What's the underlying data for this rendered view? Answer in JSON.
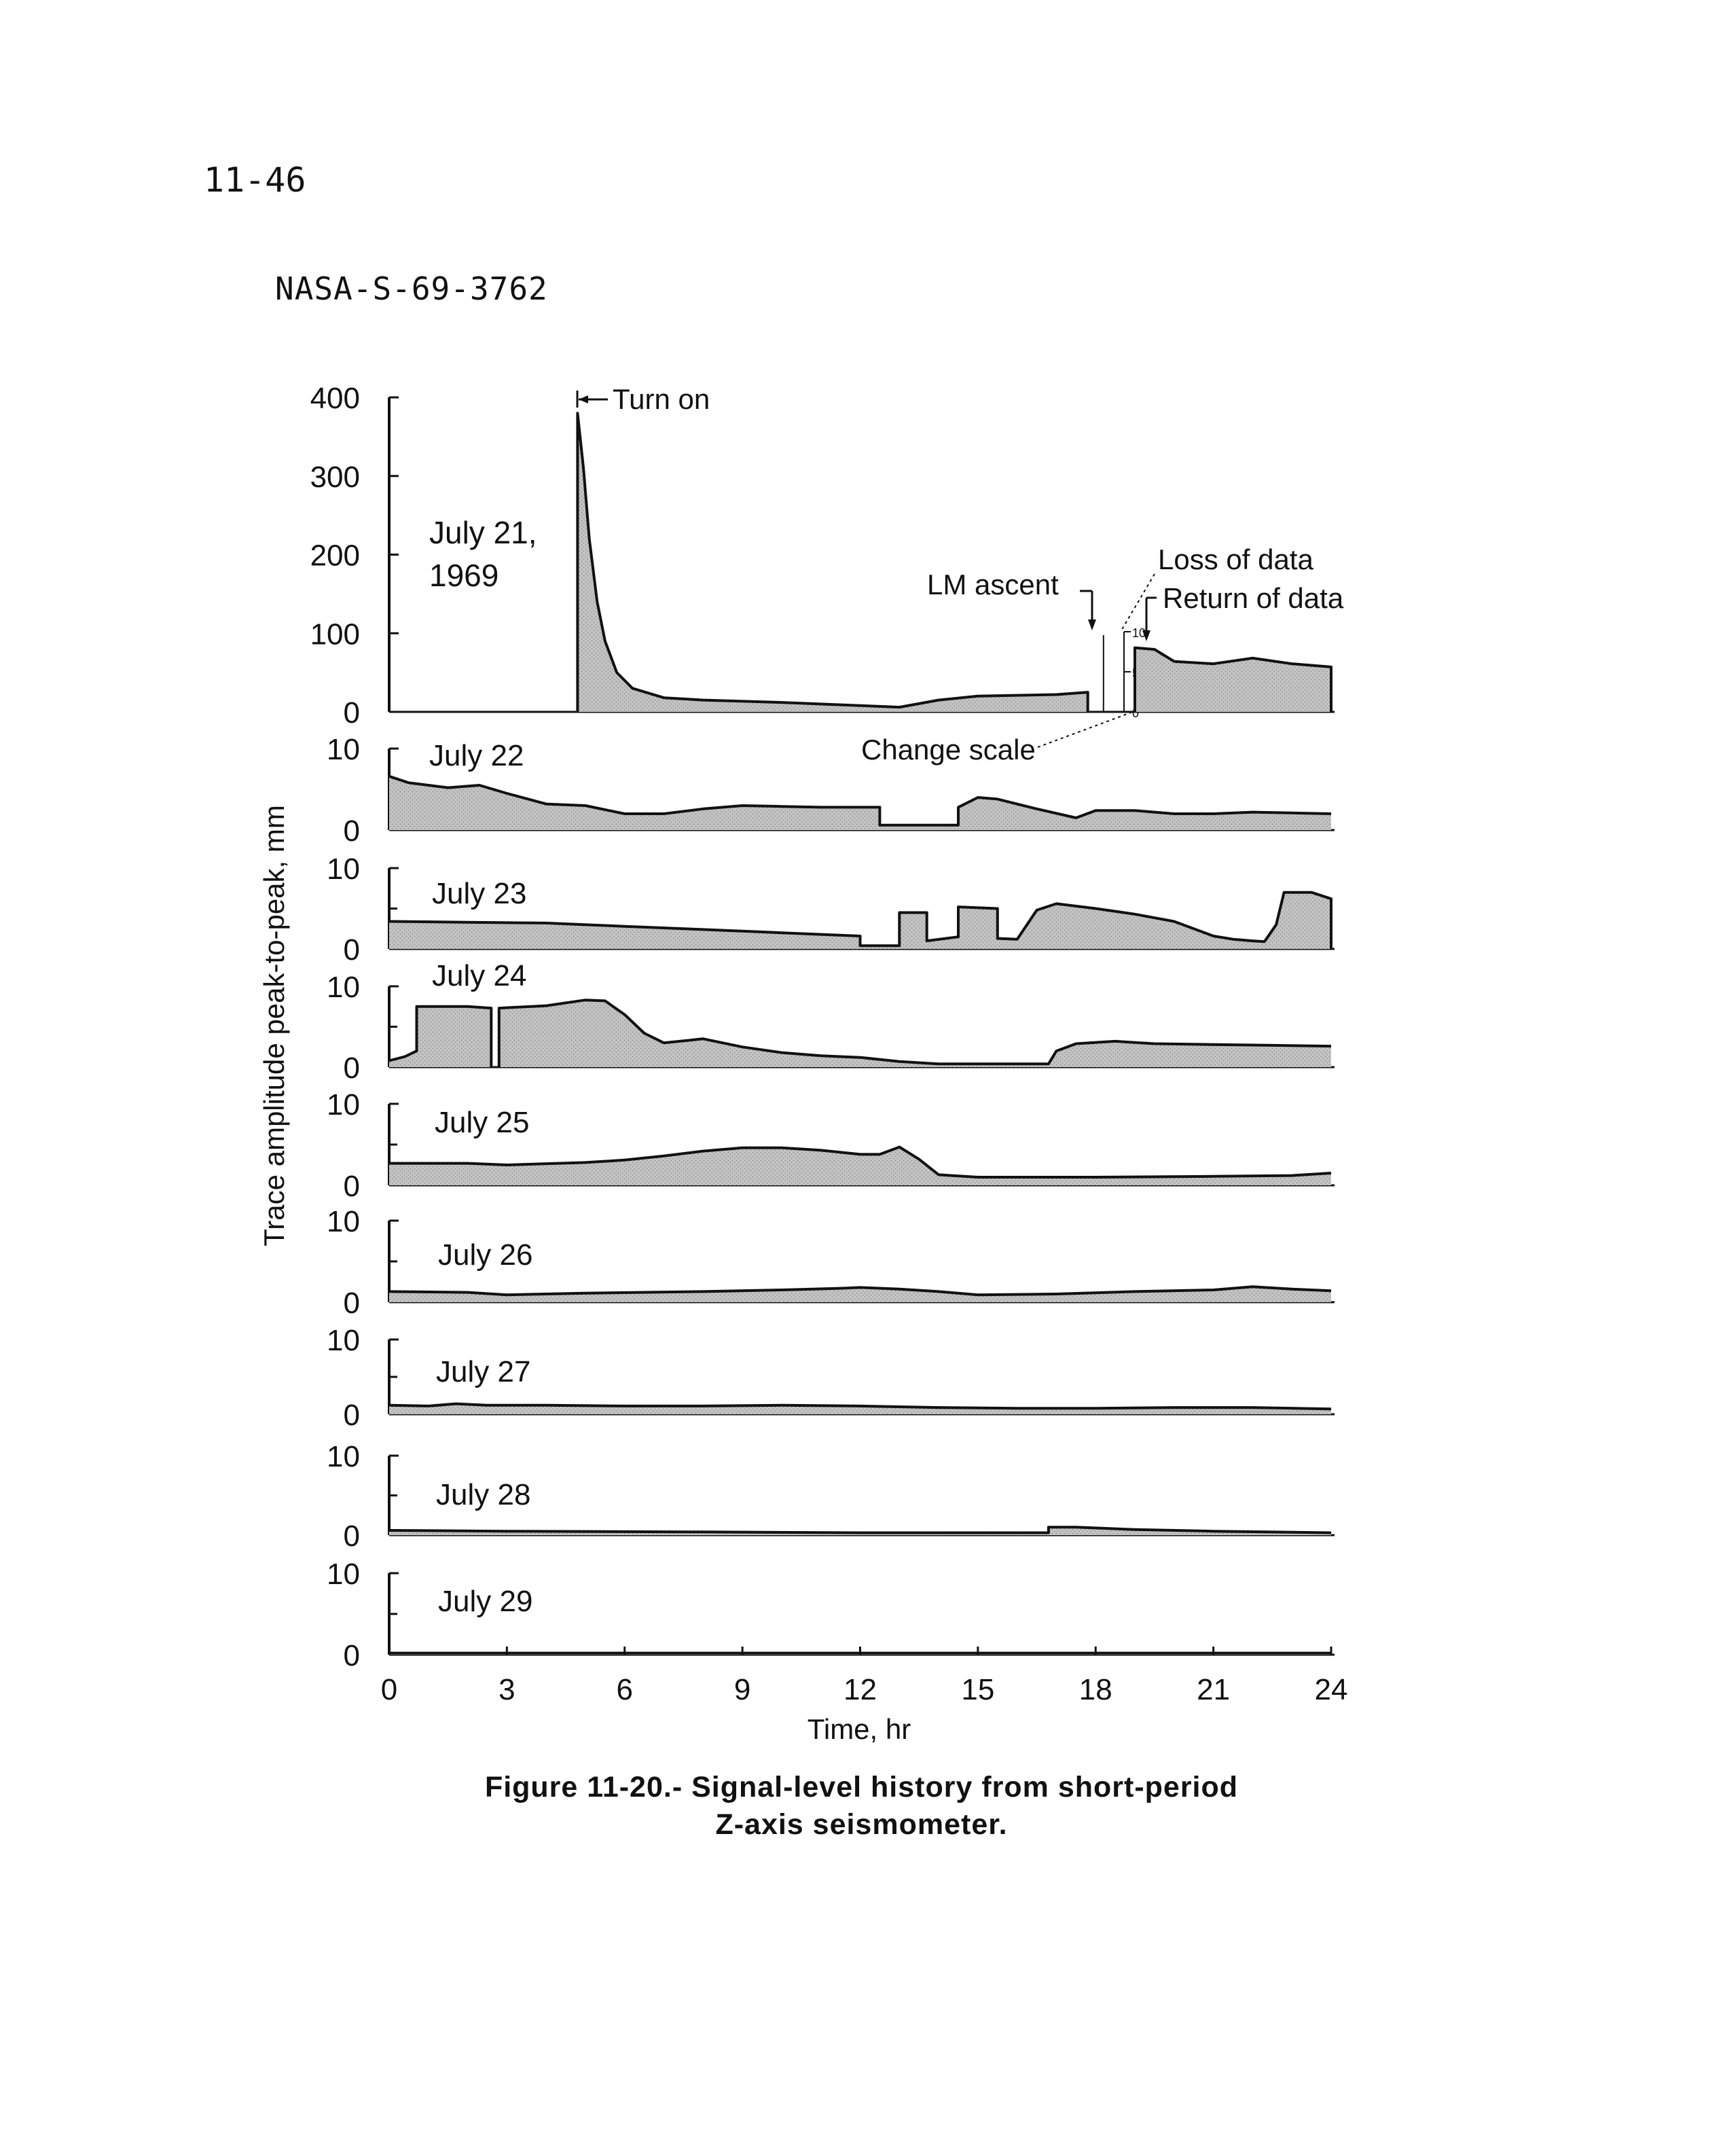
{
  "page_number": "11-46",
  "figure_id": "NASA-S-69-3762",
  "caption": {
    "line1": "Figure 11-20.- Signal-level history from short-period",
    "line2": "Z-axis seismometer."
  },
  "colors": {
    "ink": "#111111",
    "fill": "#bdbdbd",
    "paper": "#ffffff"
  },
  "chart_data": {
    "type": "area",
    "xlabel": "Time, hr",
    "ylabel": "Trace amplitude peak-to-peak, mm",
    "xlim": [
      0,
      24
    ],
    "x_ticks": [
      "0",
      "3",
      "6",
      "9",
      "12",
      "15",
      "18",
      "21",
      "24"
    ],
    "panels": [
      {
        "label_line1": "July 21,",
        "label_line2": "1969",
        "ylim": [
          0,
          400
        ],
        "y_ticks": [
          "400",
          "300",
          "200",
          "100",
          "0"
        ],
        "y_tick_values": [
          400,
          300,
          200,
          100,
          0
        ],
        "segments": [
          [
            [
              4.8,
              0
            ],
            [
              4.8,
              380
            ],
            [
              4.95,
              310
            ],
            [
              5.1,
              220
            ],
            [
              5.3,
              140
            ],
            [
              5.5,
              90
            ],
            [
              5.8,
              50
            ],
            [
              6.2,
              30
            ],
            [
              7,
              18
            ],
            [
              8,
              15
            ],
            [
              10,
              12
            ],
            [
              12,
              8
            ],
            [
              13,
              6
            ],
            [
              14,
              15
            ],
            [
              15,
              20
            ],
            [
              17,
              22
            ],
            [
              17.8,
              25
            ],
            [
              17.8,
              0
            ]
          ]
        ],
        "inset": {
          "ylim": [
            0,
            10
          ],
          "y_ticks": [
            "10",
            "5",
            "0"
          ],
          "segments": [
            [
              [
                19,
                0
              ],
              [
                19,
                8
              ],
              [
                19.5,
                7.8
              ],
              [
                20,
                6.3
              ],
              [
                21,
                6
              ],
              [
                22,
                6.7
              ],
              [
                23,
                6
              ],
              [
                24,
                5.6
              ],
              [
                24,
                0
              ]
            ]
          ]
        },
        "annotations": [
          "Turn on",
          "LM ascent",
          "Loss of data",
          "Return of data",
          "Change scale"
        ]
      },
      {
        "label": "July 22",
        "ylim": [
          0,
          10
        ],
        "y_ticks": [
          "10",
          "0"
        ],
        "segments": [
          [
            [
              0,
              6.6
            ],
            [
              0.5,
              5.8
            ],
            [
              1.5,
              5.2
            ],
            [
              2.3,
              5.5
            ],
            [
              3,
              4.5
            ],
            [
              4,
              3.2
            ],
            [
              5,
              3
            ],
            [
              6,
              2
            ],
            [
              7,
              2
            ],
            [
              8,
              2.6
            ],
            [
              9,
              3
            ],
            [
              10,
              2.9
            ],
            [
              11,
              2.8
            ],
            [
              12.5,
              2.8
            ],
            [
              12.5,
              0.6
            ],
            [
              14.5,
              0.6
            ],
            [
              14.5,
              2.8
            ],
            [
              15,
              4
            ],
            [
              15.5,
              3.8
            ],
            [
              16.5,
              2.6
            ],
            [
              17.5,
              1.5
            ],
            [
              18,
              2.4
            ],
            [
              19,
              2.4
            ],
            [
              20,
              2
            ],
            [
              21,
              2
            ],
            [
              22,
              2.2
            ],
            [
              23,
              2.1
            ],
            [
              24,
              2
            ]
          ]
        ]
      },
      {
        "label": "July 23",
        "ylim": [
          0,
          10
        ],
        "y_ticks": [
          "10",
          "0"
        ],
        "segments": [
          [
            [
              0,
              3.4
            ],
            [
              2,
              3.3
            ],
            [
              4,
              3.2
            ],
            [
              6,
              2.8
            ],
            [
              8,
              2.4
            ],
            [
              10,
              2
            ],
            [
              12,
              1.6
            ],
            [
              12,
              0.4
            ],
            [
              13,
              0.4
            ],
            [
              13,
              4.5
            ],
            [
              13.7,
              4.5
            ],
            [
              13.7,
              1
            ],
            [
              14.5,
              1.5
            ],
            [
              14.5,
              5.2
            ],
            [
              15.5,
              5
            ],
            [
              15.5,
              1.3
            ],
            [
              16,
              1.2
            ],
            [
              16.5,
              4.8
            ],
            [
              17,
              5.6
            ],
            [
              18,
              5
            ],
            [
              19,
              4.3
            ],
            [
              20,
              3.4
            ],
            [
              21,
              1.6
            ],
            [
              21.5,
              1.2
            ],
            [
              22,
              1
            ],
            [
              22.3,
              0.9
            ],
            [
              22.6,
              3
            ],
            [
              22.8,
              7
            ],
            [
              23.5,
              7
            ],
            [
              24,
              6.2
            ],
            [
              24,
              0
            ]
          ]
        ]
      },
      {
        "label": "July 24",
        "ylim": [
          0,
          10
        ],
        "y_ticks": [
          "10",
          "0"
        ],
        "segments": [
          [
            [
              0,
              0.8
            ],
            [
              0.4,
              1.3
            ],
            [
              0.7,
              2
            ],
            [
              0.7,
              7.5
            ],
            [
              2,
              7.5
            ],
            [
              2.6,
              7.3
            ],
            [
              2.6,
              0
            ]
          ],
          [
            [
              2.8,
              0
            ],
            [
              2.8,
              7.3
            ],
            [
              4,
              7.6
            ],
            [
              5,
              8.3
            ],
            [
              5.5,
              8.2
            ],
            [
              6,
              6.5
            ],
            [
              6.5,
              4.2
            ],
            [
              7,
              3
            ],
            [
              8,
              3.5
            ],
            [
              9,
              2.5
            ],
            [
              10,
              1.8
            ],
            [
              11,
              1.4
            ],
            [
              12,
              1.2
            ],
            [
              13,
              0.7
            ],
            [
              14,
              0.4
            ],
            [
              16.8,
              0.4
            ],
            [
              17,
              2
            ],
            [
              17.5,
              2.9
            ],
            [
              18.5,
              3.2
            ],
            [
              19.5,
              2.9
            ],
            [
              21,
              2.8
            ],
            [
              22.5,
              2.7
            ],
            [
              24,
              2.6
            ]
          ]
        ]
      },
      {
        "label": "July 25",
        "ylim": [
          0,
          10
        ],
        "y_ticks": [
          "10",
          "0"
        ],
        "segments": [
          [
            [
              0,
              2.7
            ],
            [
              2,
              2.7
            ],
            [
              3,
              2.5
            ],
            [
              5,
              2.8
            ],
            [
              6,
              3.1
            ],
            [
              7,
              3.6
            ],
            [
              8,
              4.2
            ],
            [
              9,
              4.6
            ],
            [
              10,
              4.6
            ],
            [
              11,
              4.3
            ],
            [
              12,
              3.8
            ],
            [
              12.5,
              3.8
            ],
            [
              13,
              4.7
            ],
            [
              13.5,
              3.2
            ],
            [
              14,
              1.3
            ],
            [
              15,
              1
            ],
            [
              18,
              1
            ],
            [
              21,
              1.1
            ],
            [
              23,
              1.2
            ],
            [
              24,
              1.5
            ]
          ]
        ]
      },
      {
        "label": "July 26",
        "ylim": [
          0,
          10
        ],
        "y_ticks": [
          "10",
          "0"
        ],
        "segments": [
          [
            [
              0,
              1.3
            ],
            [
              2,
              1.2
            ],
            [
              3,
              0.9
            ],
            [
              5,
              1.1
            ],
            [
              8,
              1.3
            ],
            [
              10,
              1.5
            ],
            [
              11.5,
              1.7
            ],
            [
              12,
              1.8
            ],
            [
              13,
              1.6
            ],
            [
              14,
              1.3
            ],
            [
              15,
              0.9
            ],
            [
              17,
              1
            ],
            [
              19,
              1.3
            ],
            [
              21,
              1.5
            ],
            [
              22,
              1.9
            ],
            [
              23,
              1.6
            ],
            [
              24,
              1.4
            ]
          ]
        ]
      },
      {
        "label": "July 27",
        "ylim": [
          0,
          10
        ],
        "y_ticks": [
          "10",
          "0"
        ],
        "segments": [
          [
            [
              0,
              1.2
            ],
            [
              1,
              1.1
            ],
            [
              1.7,
              1.4
            ],
            [
              2.5,
              1.2
            ],
            [
              4,
              1.2
            ],
            [
              6,
              1.1
            ],
            [
              8,
              1.1
            ],
            [
              10,
              1.2
            ],
            [
              12,
              1.1
            ],
            [
              14,
              0.9
            ],
            [
              16,
              0.8
            ],
            [
              18,
              0.8
            ],
            [
              20,
              0.9
            ],
            [
              22,
              0.9
            ],
            [
              24,
              0.7
            ]
          ]
        ]
      },
      {
        "label": "July 28",
        "ylim": [
          0,
          10
        ],
        "y_ticks": [
          "10",
          "0"
        ],
        "segments": [
          [
            [
              0,
              0.6
            ],
            [
              3,
              0.5
            ],
            [
              8,
              0.4
            ],
            [
              12,
              0.3
            ],
            [
              16.8,
              0.3
            ],
            [
              16.8,
              1
            ],
            [
              17.5,
              1
            ],
            [
              19,
              0.7
            ],
            [
              21,
              0.5
            ],
            [
              24,
              0.3
            ]
          ]
        ]
      },
      {
        "label": "July 29",
        "ylim": [
          0,
          10
        ],
        "y_ticks": [
          "10",
          "0"
        ],
        "segments": [
          [
            [
              0,
              0.2
            ],
            [
              12,
              0.2
            ],
            [
              24,
              0.2
            ]
          ]
        ]
      }
    ]
  }
}
